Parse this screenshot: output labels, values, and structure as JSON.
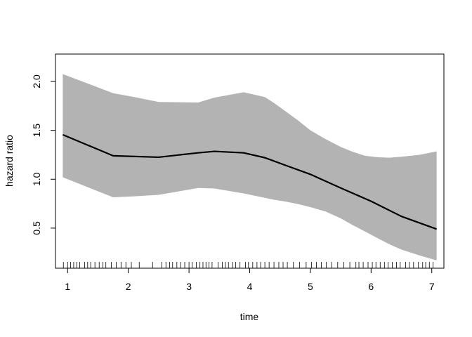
{
  "chart_data": {
    "type": "line",
    "title": "",
    "xlabel": "time",
    "ylabel": "hazard ratio",
    "xlim": [
      0.8,
      7.2
    ],
    "ylim": [
      0.09,
      2.28
    ],
    "xticks": [
      1,
      2,
      3,
      4,
      5,
      6,
      7
    ],
    "xtick_labels": [
      "1",
      "2",
      "3",
      "4",
      "5",
      "6",
      "7"
    ],
    "yticks": [
      0.5,
      1.0,
      1.5,
      2.0
    ],
    "ytick_labels": [
      "0.5",
      "1.0",
      "1.5",
      "2.0"
    ],
    "grid": false,
    "legend": "none",
    "colors": {
      "band": "#b3b3b3",
      "line": "#000000",
      "axis": "#000000"
    },
    "series": [
      {
        "x": [
          0.92,
          1.75,
          2.5,
          3.15,
          3.42,
          3.9,
          4.25,
          4.6,
          5.0,
          5.5,
          6.0,
          6.5,
          7.08
        ],
        "values": [
          1.455,
          1.24,
          1.225,
          1.27,
          1.285,
          1.27,
          1.22,
          1.14,
          1.05,
          0.91,
          0.775,
          0.62,
          0.49
        ]
      }
    ],
    "band": {
      "x": [
        0.92,
        1.75,
        2.1,
        2.5,
        3.15,
        3.42,
        3.9,
        4.25,
        4.4,
        4.6,
        4.8,
        5.0,
        5.25,
        5.5,
        5.7,
        5.9,
        6.1,
        6.3,
        6.5,
        6.8,
        7.08
      ],
      "upper": [
        2.075,
        1.88,
        1.84,
        1.79,
        1.785,
        1.835,
        1.89,
        1.84,
        1.78,
        1.69,
        1.6,
        1.5,
        1.41,
        1.33,
        1.28,
        1.24,
        1.225,
        1.22,
        1.23,
        1.25,
        1.285
      ],
      "lower": [
        1.02,
        0.815,
        0.825,
        0.84,
        0.91,
        0.905,
        0.855,
        0.81,
        0.79,
        0.77,
        0.745,
        0.715,
        0.67,
        0.6,
        0.53,
        0.465,
        0.4,
        0.335,
        0.28,
        0.22,
        0.17
      ]
    },
    "rug": [
      0.93,
      1.0,
      1.05,
      1.1,
      1.15,
      1.2,
      1.28,
      1.33,
      1.38,
      1.45,
      1.52,
      1.58,
      1.63,
      1.72,
      1.8,
      1.88,
      1.96,
      2.05,
      2.18,
      2.4,
      2.55,
      2.62,
      2.68,
      2.73,
      2.8,
      2.86,
      2.93,
      3.0,
      3.05,
      3.12,
      3.18,
      3.23,
      3.28,
      3.33,
      3.38,
      3.48,
      3.55,
      3.6,
      3.65,
      3.72,
      3.77,
      3.84,
      3.93,
      3.98,
      4.05,
      4.12,
      4.18,
      4.25,
      4.32,
      4.4,
      4.48,
      4.55,
      4.62,
      4.72,
      4.82,
      4.93,
      5.02,
      5.1,
      5.18,
      5.26,
      5.35,
      5.45,
      5.55,
      5.65,
      5.75,
      5.8,
      5.87,
      5.95,
      6.02,
      6.08,
      6.15,
      6.22,
      6.28,
      6.35,
      6.42,
      6.48,
      6.57,
      6.63,
      6.7,
      6.78,
      6.85,
      6.9,
      6.96,
      7.02
    ]
  }
}
